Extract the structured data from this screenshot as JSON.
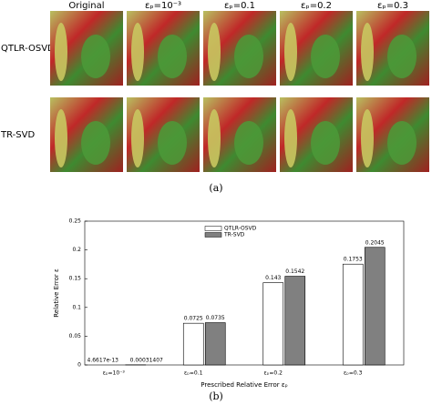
{
  "figure_a": {
    "columns": [
      "Original",
      "εₚ=10⁻³",
      "εₚ=0.1",
      "εₚ=0.2",
      "εₚ=0.3"
    ],
    "rows": [
      "QTLR-OSVD",
      "TR-SVD"
    ],
    "caption": "(a)"
  },
  "chart_data": {
    "type": "bar",
    "categories": [
      "εₚ=10⁻³",
      "εₚ=0.1",
      "εₚ=0.2",
      "εₚ=0.3"
    ],
    "series": [
      {
        "name": "QTLR-OSVD",
        "color": "#ffffff",
        "values": [
          4.6617e-13,
          0.0725,
          0.143,
          0.1753
        ]
      },
      {
        "name": "TR-SVD",
        "color": "#808080",
        "values": [
          0.00031407,
          0.0735,
          0.1542,
          0.2045
        ]
      }
    ],
    "ylim": [
      0,
      0.25
    ],
    "yticks": [
      0,
      0.05,
      0.1,
      0.15,
      0.2,
      0.25
    ],
    "xlabel": "Prescribed Relative Error εₚ",
    "ylabel": "Relative Error ε",
    "legend": "top"
  },
  "caption_b": "(b)"
}
